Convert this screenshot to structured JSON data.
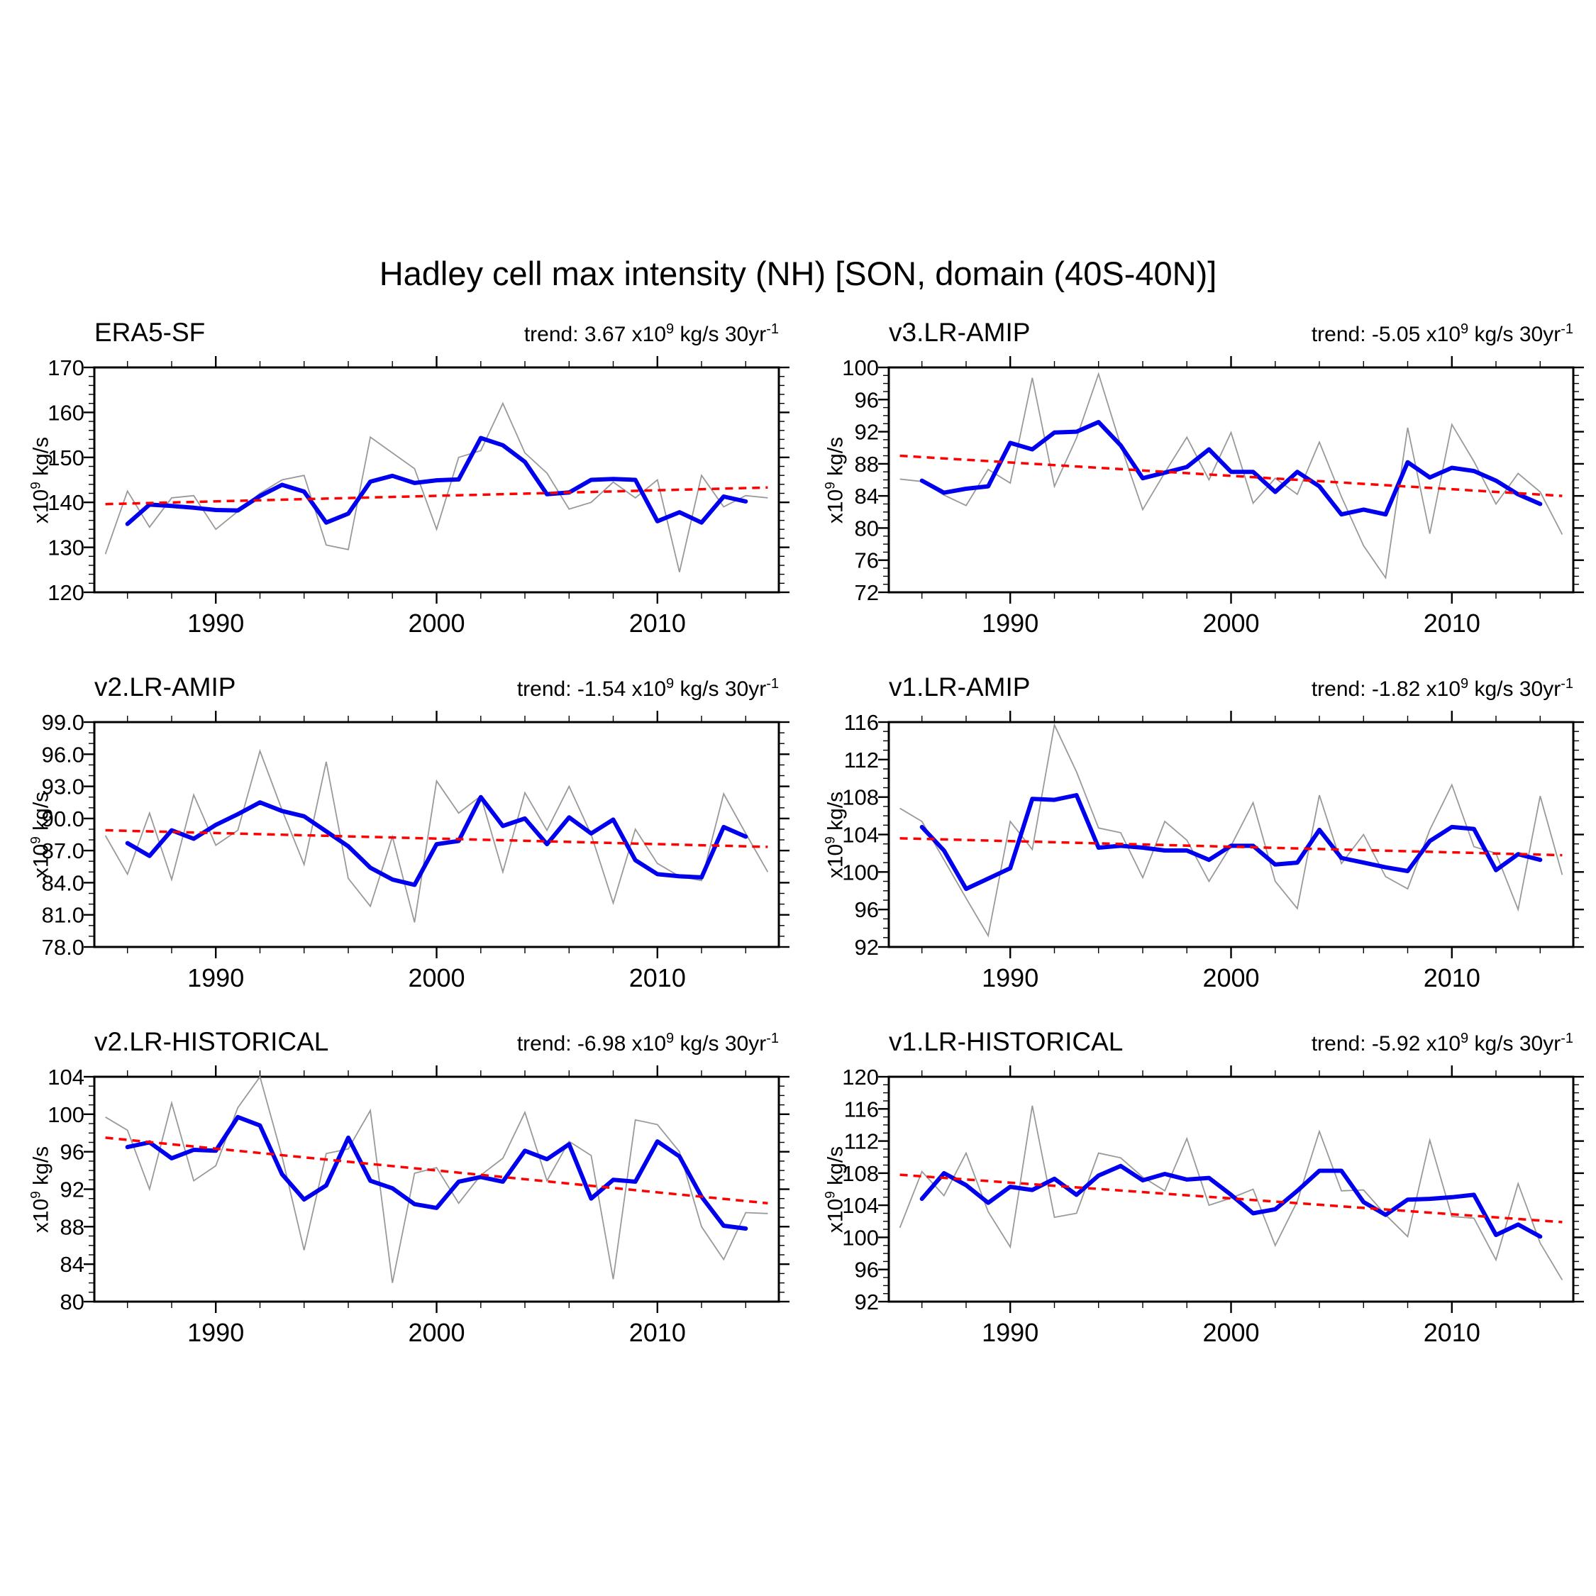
{
  "header": {
    "title": "Hadley cell max intensity (NH) [SON, domain (40S-40N)]"
  },
  "labels": {
    "trend_prefix": "trend: ",
    "x10": " x10",
    "exp9": "9",
    "units_30yr": " kg/s 30yr",
    "exp_m1": "-1",
    "ylab_x10": "x10",
    "ylab_units": " kg/s"
  },
  "colors": {
    "annual": "#999999",
    "smoothed": "#0000ee",
    "trend": "#ff0000",
    "axis": "#000000"
  },
  "axes": {
    "x_domain": [
      1984.5,
      2015.5
    ],
    "x_range_years": [
      1985,
      2015
    ],
    "xticks": [
      1990,
      2000,
      2010
    ],
    "xtick_labels": [
      "1990",
      "2000",
      "2010"
    ],
    "xminor_step": 2,
    "annual_start_year": 1985,
    "smoothed_start_year": 1986,
    "grid": false,
    "legend": "none"
  },
  "chart_data": [
    {
      "type": "line",
      "title": "ERA5-SF",
      "trend_label": "3.67",
      "ylabel": "x10^9 kg/s",
      "ylim": [
        120,
        170
      ],
      "ystep": 10,
      "yminor": 2,
      "ydec": 0,
      "series": {
        "annual": [
          128.5,
          142.5,
          134.5,
          141,
          141.5,
          134,
          138,
          142,
          145,
          146,
          130.5,
          129.5,
          154.5,
          151,
          147.5,
          134,
          150,
          151.5,
          162,
          151,
          146.5,
          138.5,
          140,
          144.5,
          141,
          145,
          124.5,
          146,
          139,
          141.5,
          141
        ],
        "smoothed": [
          135.2,
          139.5,
          139.2,
          138.8,
          138.3,
          138.2,
          141.4,
          143.9,
          142.4,
          135.5,
          137.5,
          144.6,
          145.9,
          144.3,
          144.9,
          145.1,
          154.3,
          152.7,
          149,
          141.8,
          142.2,
          145,
          145.2,
          145,
          135.8,
          137.8,
          135.5,
          141.3,
          140.2
        ],
        "trend_endpoints": [
          139.6,
          143.3
        ]
      }
    },
    {
      "type": "line",
      "title": "v3.LR-AMIP",
      "trend_label": "-5.05",
      "ylabel": "x10^9 kg/s",
      "ylim": [
        72,
        100
      ],
      "ystep": 4,
      "yminor": 1,
      "ydec": 0,
      "series": {
        "annual": [
          86.1,
          85.8,
          84.1,
          82.8,
          87.3,
          85.6,
          98.7,
          85.2,
          91.2,
          99.2,
          90.3,
          82.3,
          86.9,
          91.3,
          86,
          91.9,
          83.1,
          86.2,
          84.2,
          90.7,
          83.9,
          77.8,
          73.8,
          92.5,
          79.3,
          92.9,
          88.3,
          83,
          86.8,
          84.5,
          79.2
        ],
        "smoothed": [
          85.9,
          84.4,
          84.9,
          85.2,
          90.6,
          89.8,
          91.9,
          92,
          93.2,
          90.3,
          86.2,
          86.9,
          87.6,
          89.8,
          87,
          87,
          84.5,
          87,
          85.2,
          81.7,
          82.3,
          81.7,
          88.2,
          86.3,
          87.5,
          87.1,
          85.9,
          84.2,
          83
        ],
        "trend_endpoints": [
          89.0,
          84.0
        ]
      }
    },
    {
      "type": "line",
      "title": "v2.LR-AMIP",
      "trend_label": "-1.54",
      "ylabel": "x10^9 kg/s",
      "ylim": [
        78,
        99
      ],
      "ystep": 3,
      "yminor": 1,
      "ydec": 1,
      "series": {
        "annual": [
          88.4,
          84.8,
          90.5,
          84.3,
          92.2,
          87.5,
          88.9,
          96.3,
          90.8,
          85.7,
          95.3,
          84.4,
          81.8,
          88.3,
          80.3,
          93.5,
          90.5,
          92.1,
          85,
          92.4,
          88.9,
          93,
          88.5,
          82.1,
          89,
          85.8,
          84.6,
          84.2,
          92.3,
          88.6,
          85
        ],
        "smoothed": [
          87.7,
          86.5,
          88.9,
          88.1,
          89.4,
          90.4,
          91.5,
          90.7,
          90.2,
          88.8,
          87.4,
          85.4,
          84.3,
          83.8,
          87.6,
          87.9,
          92,
          89.3,
          90,
          87.6,
          90.1,
          88.6,
          89.9,
          86.1,
          84.8,
          84.6,
          84.5,
          89.2,
          88.3
        ],
        "trend_endpoints": [
          88.9,
          87.35
        ]
      }
    },
    {
      "type": "line",
      "title": "v1.LR-AMIP",
      "trend_label": "-1.82",
      "ylabel": "x10^9 kg/s",
      "ylim": [
        92,
        116
      ],
      "ystep": 4,
      "yminor": 1,
      "ydec": 0,
      "series": {
        "annual": [
          106.8,
          105.4,
          101.3,
          97.2,
          93.2,
          105.4,
          102.4,
          115.7,
          110.7,
          104.7,
          104.2,
          99.4,
          105.4,
          103.4,
          99,
          102.8,
          107.4,
          99,
          96.1,
          108.2,
          100.9,
          104,
          99.5,
          98.2,
          104.5,
          109.3,
          102.7,
          102,
          96,
          108.1,
          99.7
        ],
        "smoothed": [
          104.8,
          102.3,
          98.2,
          99.3,
          100.4,
          107.8,
          107.7,
          108.2,
          102.6,
          102.8,
          102.6,
          102.3,
          102.3,
          101.3,
          102.8,
          102.8,
          100.8,
          101,
          104.5,
          101.5,
          101,
          100.5,
          100.1,
          103.3,
          104.8,
          104.6,
          100.2,
          101.9,
          101.3
        ],
        "trend_endpoints": [
          103.6,
          101.8
        ]
      }
    },
    {
      "type": "line",
      "title": "v2.LR-HISTORICAL",
      "trend_label": "-6.98",
      "ylabel": "x10^9 kg/s",
      "ylim": [
        80,
        104
      ],
      "ystep": 4,
      "yminor": 1,
      "ydec": 0,
      "series": {
        "annual": [
          99.7,
          98.3,
          92,
          101.2,
          92.9,
          94.5,
          100.7,
          104,
          95.5,
          85.5,
          95.8,
          96.3,
          100.4,
          82,
          93.7,
          94.3,
          90.5,
          93.5,
          95.3,
          100.2,
          92.9,
          97.1,
          95.6,
          82.4,
          99.4,
          98.9,
          96,
          88,
          84.5,
          89.5,
          89.4
        ],
        "smoothed": [
          96.5,
          97,
          95.3,
          96.2,
          96.1,
          99.7,
          98.8,
          93.6,
          90.9,
          92.4,
          97.5,
          92.9,
          92.1,
          90.4,
          90,
          92.8,
          93.3,
          92.8,
          96.1,
          95.2,
          96.8,
          91,
          93,
          92.8,
          97.1,
          95.5,
          91.2,
          88.1,
          87.8
        ],
        "trend_endpoints": [
          97.5,
          90.5
        ]
      }
    },
    {
      "type": "line",
      "title": "v1.LR-HISTORICAL",
      "trend_label": "-5.92",
      "ylabel": "x10^9 kg/s",
      "ylim": [
        92,
        120
      ],
      "ystep": 4,
      "yminor": 1,
      "ydec": 0,
      "series": {
        "annual": [
          101.2,
          108.2,
          105.2,
          110.5,
          103.2,
          98.8,
          116.4,
          102.5,
          103,
          110.5,
          109.9,
          107.5,
          105.8,
          112.3,
          104,
          104.9,
          106,
          99,
          104.5,
          113.2,
          105.8,
          105.9,
          102.8,
          100.1,
          112.1,
          102.6,
          102.4,
          97.2,
          106.7,
          99.3,
          94.7
        ],
        "smoothed": [
          104.8,
          108,
          106.5,
          104.3,
          106.3,
          105.9,
          107.3,
          105.3,
          107.7,
          108.9,
          107.1,
          107.9,
          107.2,
          107.4,
          105.3,
          103,
          103.5,
          105.8,
          108.3,
          108.3,
          104.4,
          102.8,
          104.7,
          104.8,
          105,
          105.3,
          100.3,
          101.6,
          100.1
        ],
        "trend_endpoints": [
          107.8,
          101.9
        ]
      }
    }
  ]
}
